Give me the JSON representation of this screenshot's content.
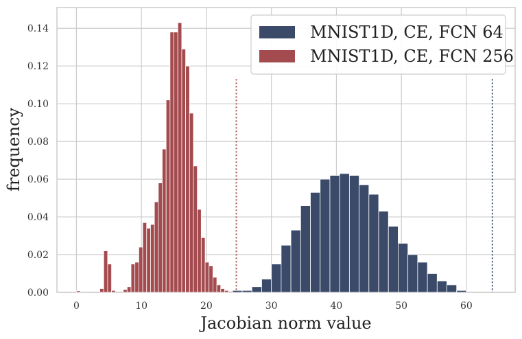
{
  "chart_data": {
    "type": "bar",
    "subtype": "histogram",
    "xlabel": "Jacobian norm value",
    "ylabel": "frequency",
    "xlim": [
      -3,
      67.5
    ],
    "ylim": [
      0,
      0.151
    ],
    "xticks": [
      0,
      10,
      20,
      30,
      40,
      50,
      60
    ],
    "yticks": [
      0.0,
      0.02,
      0.04,
      0.06,
      0.08,
      0.1,
      0.12,
      0.14
    ],
    "ytick_labels": [
      "0.00",
      "0.02",
      "0.04",
      "0.06",
      "0.08",
      "0.10",
      "0.12",
      "0.14"
    ],
    "grid": true,
    "legend_position": "top-right",
    "series": [
      {
        "name": "MNIST1D, CE, FCN 64",
        "color": "#3b4a68",
        "bin_width": 1.5,
        "bin_starts": [
          24.0,
          25.5,
          27.0,
          28.5,
          30.0,
          31.5,
          33.0,
          34.5,
          36.0,
          37.5,
          39.0,
          40.5,
          42.0,
          43.5,
          45.0,
          46.5,
          48.0,
          49.5,
          51.0,
          52.5,
          54.0,
          55.5,
          57.0,
          58.5
        ],
        "values": [
          0.001,
          0.001,
          0.003,
          0.007,
          0.015,
          0.025,
          0.033,
          0.046,
          0.053,
          0.06,
          0.062,
          0.063,
          0.062,
          0.057,
          0.052,
          0.043,
          0.035,
          0.026,
          0.02,
          0.016,
          0.01,
          0.006,
          0.004,
          0.001
        ],
        "threshold": 64,
        "threshold_height": 0.113
      },
      {
        "name": "MNIST1D, CE, FCN 256",
        "color": "#a34b4e",
        "bin_width": 0.6,
        "bin_starts": [
          0.0,
          0.6,
          1.2,
          1.8,
          2.4,
          3.0,
          3.6,
          4.2,
          4.8,
          5.4,
          6.0,
          6.6,
          7.2,
          7.8,
          8.4,
          9.0,
          9.6,
          10.2,
          10.8,
          11.4,
          12.0,
          12.6,
          13.2,
          13.8,
          14.4,
          15.0,
          15.6,
          16.2,
          16.8,
          17.4,
          18.0,
          18.6,
          19.2,
          19.8,
          20.4,
          21.0,
          21.6,
          22.2,
          22.8,
          23.4,
          24.0
        ],
        "values": [
          0.0008,
          0,
          0,
          0,
          0,
          0,
          0.002,
          0.022,
          0.015,
          0.001,
          0,
          0,
          0.0015,
          0.003,
          0.015,
          0.016,
          0.024,
          0.037,
          0.034,
          0.036,
          0.048,
          0.058,
          0.076,
          0.102,
          0.138,
          0.138,
          0.143,
          0.129,
          0.12,
          0.095,
          0.067,
          0.044,
          0.029,
          0.016,
          0.014,
          0.008,
          0.004,
          0.002,
          0.001,
          0.0005,
          0
        ],
        "threshold": 24.6,
        "threshold_height": 0.113
      }
    ]
  }
}
